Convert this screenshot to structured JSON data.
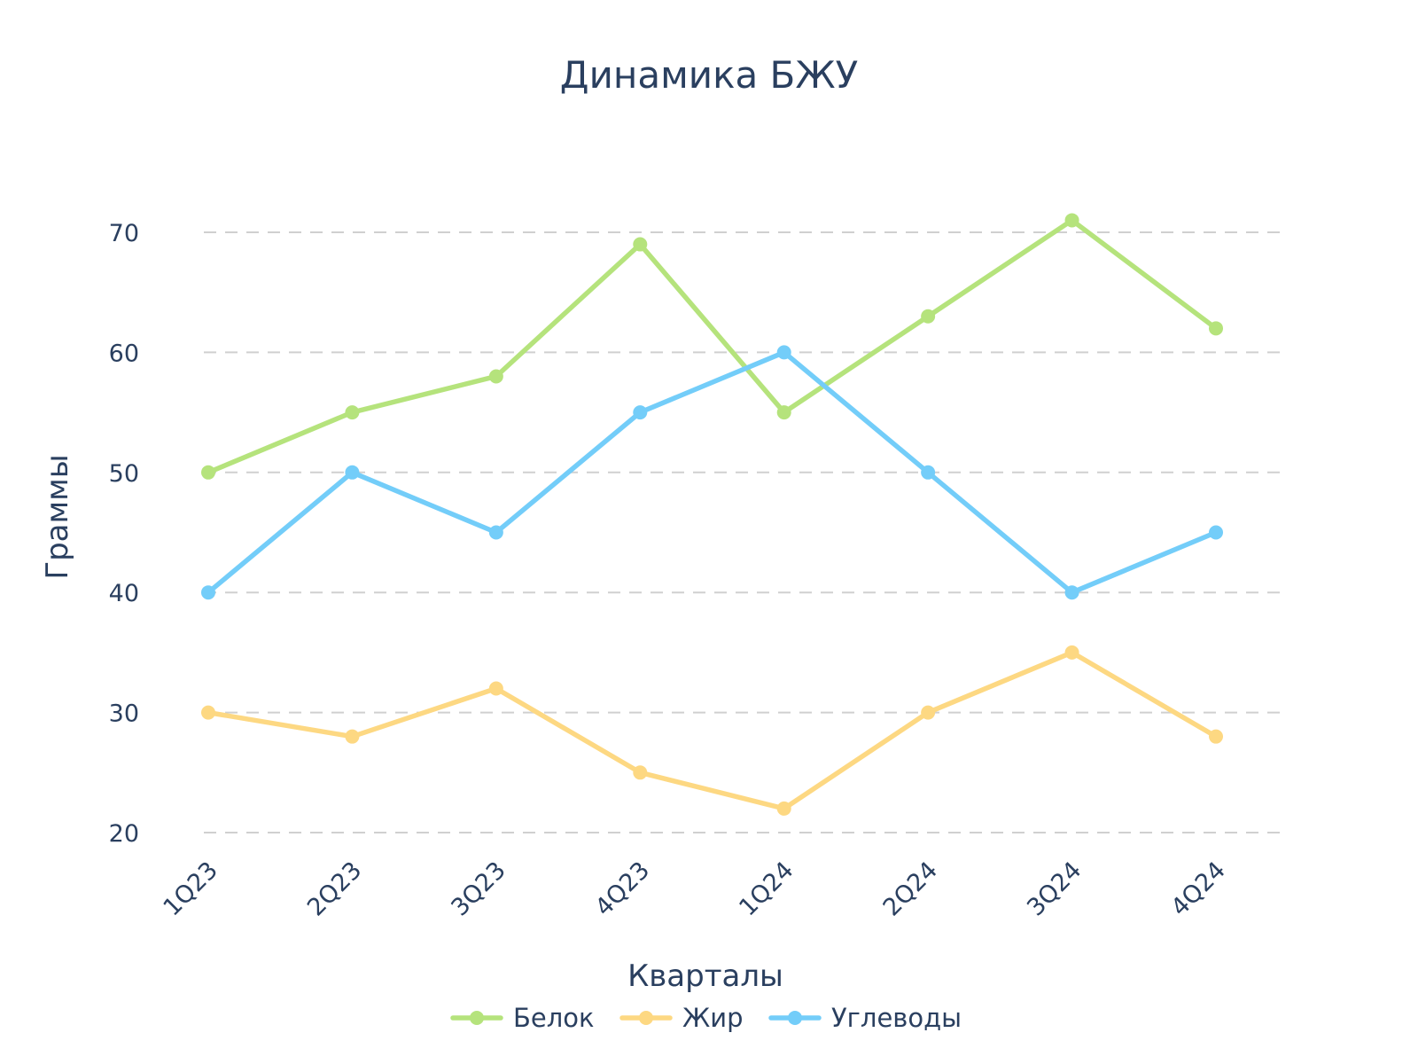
{
  "chart_data": {
    "type": "line",
    "title": "Динамика БЖУ",
    "xlabel": "Кварталы",
    "ylabel": "Граммы",
    "categories": [
      "1Q23",
      "2Q23",
      "3Q23",
      "4Q23",
      "1Q24",
      "2Q24",
      "3Q24",
      "4Q24"
    ],
    "ylim": [
      18,
      75
    ],
    "yticks": [
      20,
      30,
      40,
      50,
      60,
      70
    ],
    "grid": true,
    "legend_position": "bottom-center",
    "series": [
      {
        "name": "Белок",
        "color": "#b5e37c",
        "values": [
          50,
          55,
          58,
          69,
          55,
          63,
          71,
          62
        ]
      },
      {
        "name": "Жир",
        "color": "#fdd882",
        "values": [
          30,
          28,
          32,
          25,
          22,
          30,
          35,
          28
        ]
      },
      {
        "name": "Углеводы",
        "color": "#73cdf9",
        "values": [
          40,
          50,
          45,
          55,
          60,
          50,
          40,
          45
        ]
      }
    ]
  }
}
